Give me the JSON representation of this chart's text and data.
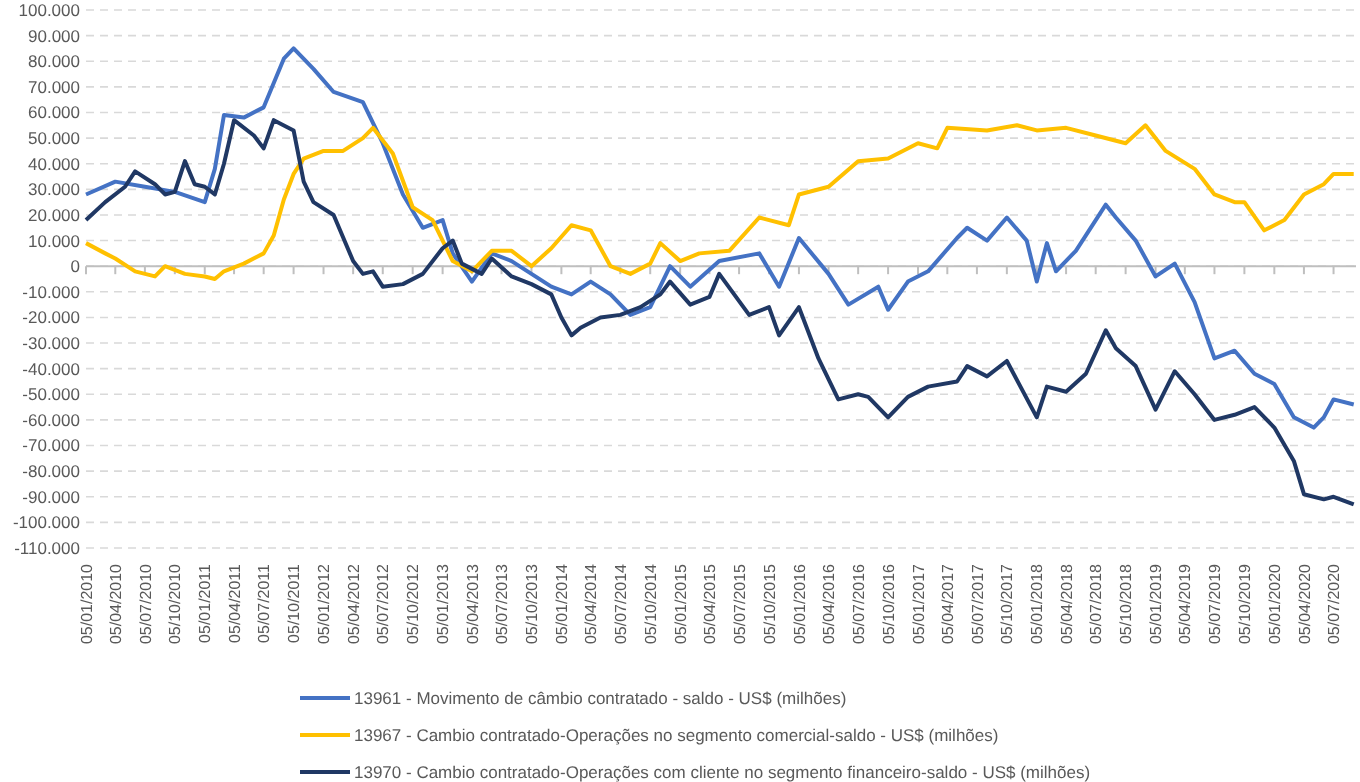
{
  "chart_data": {
    "type": "line",
    "grid": "y",
    "legend": "bottom",
    "xlim": [
      "2010-01-05",
      "2020-09-12"
    ],
    "ylim": [
      -110000,
      100000
    ],
    "yticks": [
      {
        "value": -110000,
        "label": "-110.000"
      },
      {
        "value": -100000,
        "label": "-100.000"
      },
      {
        "value": -90000,
        "label": "-90.000"
      },
      {
        "value": -80000,
        "label": "-80.000"
      },
      {
        "value": -70000,
        "label": "-70.000"
      },
      {
        "value": -60000,
        "label": "-60.000"
      },
      {
        "value": -50000,
        "label": "-50.000"
      },
      {
        "value": -40000,
        "label": "-40.000"
      },
      {
        "value": -30000,
        "label": "-30.000"
      },
      {
        "value": -20000,
        "label": "-20.000"
      },
      {
        "value": -10000,
        "label": "-10.000"
      },
      0,
      {
        "value": 10000,
        "label": "10.000"
      },
      {
        "value": 20000,
        "label": "20.000"
      },
      {
        "value": 30000,
        "label": "30.000"
      },
      {
        "value": 40000,
        "label": "40.000"
      },
      {
        "value": 50000,
        "label": "50.000"
      },
      {
        "value": 60000,
        "label": "60.000"
      },
      {
        "value": 70000,
        "label": "70.000"
      },
      {
        "value": 80000,
        "label": "80.000"
      },
      {
        "value": 90000,
        "label": "90.000"
      },
      {
        "value": 100000,
        "label": "100.000"
      }
    ],
    "xticks": [
      {
        "value": "2010-01-05",
        "label": "05/01/2010"
      },
      {
        "value": "2010-04-05",
        "label": "05/04/2010"
      },
      {
        "value": "2010-07-05",
        "label": "05/07/2010"
      },
      {
        "value": "2010-10-05",
        "label": "05/10/2010"
      },
      {
        "value": "2011-01-05",
        "label": "05/01/2011"
      },
      {
        "value": "2011-04-05",
        "label": "05/04/2011"
      },
      {
        "value": "2011-07-05",
        "label": "05/07/2011"
      },
      {
        "value": "2011-10-05",
        "label": "05/10/2011"
      },
      {
        "value": "2012-01-05",
        "label": "05/01/2012"
      },
      {
        "value": "2012-04-05",
        "label": "05/04/2012"
      },
      {
        "value": "2012-07-05",
        "label": "05/07/2012"
      },
      {
        "value": "2012-10-05",
        "label": "05/10/2012"
      },
      {
        "value": "2013-01-05",
        "label": "05/01/2013"
      },
      {
        "value": "2013-04-05",
        "label": "05/04/2013"
      },
      {
        "value": "2013-07-05",
        "label": "05/07/2013"
      },
      {
        "value": "2013-10-05",
        "label": "05/10/2013"
      },
      {
        "value": "2014-01-05",
        "label": "05/01/2014"
      },
      {
        "value": "2014-04-05",
        "label": "05/04/2014"
      },
      {
        "value": "2014-07-05",
        "label": "05/07/2014"
      },
      {
        "value": "2014-10-05",
        "label": "05/10/2014"
      },
      {
        "value": "2015-01-05",
        "label": "05/01/2015"
      },
      {
        "value": "2015-04-05",
        "label": "05/04/2015"
      },
      {
        "value": "2015-07-05",
        "label": "05/07/2015"
      },
      {
        "value": "2015-10-05",
        "label": "05/10/2015"
      },
      {
        "value": "2016-01-05",
        "label": "05/01/2016"
      },
      {
        "value": "2016-04-05",
        "label": "05/04/2016"
      },
      {
        "value": "2016-07-05",
        "label": "05/07/2016"
      },
      {
        "value": "2016-10-05",
        "label": "05/10/2016"
      },
      {
        "value": "2017-01-05",
        "label": "05/01/2017"
      },
      {
        "value": "2017-04-05",
        "label": "05/04/2017"
      },
      {
        "value": "2017-07-05",
        "label": "05/07/2017"
      },
      {
        "value": "2017-10-05",
        "label": "05/10/2017"
      },
      {
        "value": "2018-01-05",
        "label": "05/01/2018"
      },
      {
        "value": "2018-04-05",
        "label": "05/04/2018"
      },
      {
        "value": "2018-07-05",
        "label": "05/07/2018"
      },
      {
        "value": "2018-10-05",
        "label": "05/10/2018"
      },
      {
        "value": "2019-01-05",
        "label": "05/01/2019"
      },
      {
        "value": "2019-04-05",
        "label": "05/04/2019"
      },
      {
        "value": "2019-07-05",
        "label": "05/07/2019"
      },
      {
        "value": "2019-10-05",
        "label": "05/10/2019"
      },
      {
        "value": "2020-01-05",
        "label": "05/01/2020"
      },
      {
        "value": "2020-04-05",
        "label": "05/04/2020"
      },
      {
        "value": "2020-07-05",
        "label": "05/07/2020"
      }
    ],
    "series": [
      {
        "name": "13961 - Movimento de câmbio contratado - saldo - US$ (milhões)",
        "color": "#4472c4",
        "x": [
          "2010-01-05",
          "2010-04-05",
          "2010-07-05",
          "2010-10-05",
          "2011-01-05",
          "2011-02-05",
          "2011-03-05",
          "2011-05-05",
          "2011-07-05",
          "2011-09-05",
          "2011-10-05",
          "2011-12-05",
          "2012-02-05",
          "2012-05-05",
          "2012-07-05",
          "2012-09-05",
          "2012-11-05",
          "2013-01-05",
          "2013-02-05",
          "2013-04-05",
          "2013-06-05",
          "2013-08-05",
          "2013-10-05",
          "2013-12-05",
          "2014-02-05",
          "2014-04-05",
          "2014-06-05",
          "2014-08-05",
          "2014-10-05",
          "2014-12-05",
          "2015-02-05",
          "2015-05-05",
          "2015-09-05",
          "2015-11-05",
          "2016-01-05",
          "2016-04-05",
          "2016-06-05",
          "2016-09-05",
          "2016-10-05",
          "2016-12-05",
          "2017-02-05",
          "2017-05-05",
          "2017-06-05",
          "2017-08-05",
          "2017-10-05",
          "2017-12-05",
          "2018-01-05",
          "2018-02-05",
          "2018-03-05",
          "2018-05-05",
          "2018-08-05",
          "2018-09-05",
          "2018-11-05",
          "2019-01-05",
          "2019-03-05",
          "2019-05-05",
          "2019-07-05",
          "2019-09-05",
          "2019-11-05",
          "2020-01-05",
          "2020-03-05",
          "2020-05-05",
          "2020-06-05",
          "2020-07-05",
          "2020-09-05"
        ],
        "values": [
          28000,
          33000,
          31000,
          29000,
          25000,
          38000,
          59000,
          58000,
          62000,
          81000,
          85000,
          77000,
          68000,
          64000,
          48000,
          28000,
          15000,
          18000,
          5000,
          -6000,
          5000,
          2000,
          -3000,
          -8000,
          -11000,
          -6000,
          -11000,
          -19000,
          -16000,
          0,
          -8000,
          2000,
          5000,
          -8000,
          11000,
          -3000,
          -15000,
          -8000,
          -17000,
          -6000,
          -2000,
          11000,
          15000,
          10000,
          19000,
          10000,
          -6000,
          9000,
          -2000,
          6000,
          24000,
          19000,
          10000,
          -4000,
          1000,
          -14000,
          -36000,
          -33000,
          -42000,
          -46000,
          -59000,
          -63000,
          -59000,
          -52000,
          -54000
        ]
      },
      {
        "name": "13967 - Cambio contratado-Operações no segmento comercial-saldo - US$ (milhões)",
        "color": "#ffc000",
        "x": [
          "2010-01-05",
          "2010-03-05",
          "2010-04-05",
          "2010-06-05",
          "2010-08-05",
          "2010-09-05",
          "2010-11-05",
          "2011-01-05",
          "2011-02-05",
          "2011-03-05",
          "2011-05-05",
          "2011-07-05",
          "2011-08-05",
          "2011-09-05",
          "2011-10-05",
          "2011-11-05",
          "2012-01-05",
          "2012-03-05",
          "2012-05-05",
          "2012-06-05",
          "2012-08-05",
          "2012-10-05",
          "2012-12-05",
          "2013-02-05",
          "2013-04-05",
          "2013-06-05",
          "2013-08-05",
          "2013-10-05",
          "2013-12-05",
          "2014-02-05",
          "2014-04-05",
          "2014-06-05",
          "2014-08-05",
          "2014-10-05",
          "2014-11-05",
          "2015-01-05",
          "2015-03-05",
          "2015-06-05",
          "2015-09-05",
          "2015-12-05",
          "2016-01-05",
          "2016-04-05",
          "2016-07-05",
          "2016-10-05",
          "2017-01-05",
          "2017-03-05",
          "2017-04-05",
          "2017-08-05",
          "2017-11-05",
          "2018-01-05",
          "2018-04-05",
          "2018-07-05",
          "2018-10-05",
          "2018-12-05",
          "2019-02-05",
          "2019-05-05",
          "2019-07-05",
          "2019-09-05",
          "2019-10-05",
          "2019-12-05",
          "2020-02-05",
          "2020-04-05",
          "2020-06-05",
          "2020-07-05",
          "2020-09-05"
        ],
        "values": [
          9000,
          5000,
          3000,
          -2000,
          -4000,
          0,
          -3000,
          -4000,
          -5000,
          -2000,
          1000,
          5000,
          12000,
          26000,
          36000,
          42000,
          45000,
          45000,
          50000,
          54000,
          44000,
          23000,
          18000,
          2000,
          -2000,
          6000,
          6000,
          0,
          7000,
          16000,
          14000,
          0,
          -3000,
          1000,
          9000,
          2000,
          5000,
          6000,
          19000,
          16000,
          28000,
          31000,
          41000,
          42000,
          48000,
          46000,
          54000,
          53000,
          55000,
          53000,
          54000,
          51000,
          48000,
          55000,
          45000,
          38000,
          28000,
          25000,
          25000,
          14000,
          18000,
          28000,
          32000,
          36000,
          36000
        ]
      },
      {
        "name": "13970 - Cambio contratado-Operações com cliente no segmento financeiro-saldo - US$ (milhões)",
        "color": "#203864",
        "x": [
          "2010-01-05",
          "2010-03-05",
          "2010-05-05",
          "2010-06-05",
          "2010-08-05",
          "2010-09-05",
          "2010-10-05",
          "2010-11-05",
          "2010-12-05",
          "2011-01-05",
          "2011-02-05",
          "2011-03-05",
          "2011-04-05",
          "2011-06-05",
          "2011-07-05",
          "2011-08-05",
          "2011-10-05",
          "2011-11-05",
          "2011-12-05",
          "2012-02-05",
          "2012-04-05",
          "2012-05-05",
          "2012-06-05",
          "2012-07-05",
          "2012-09-05",
          "2012-11-05",
          "2013-01-05",
          "2013-02-05",
          "2013-03-05",
          "2013-05-05",
          "2013-06-05",
          "2013-08-05",
          "2013-10-05",
          "2013-12-05",
          "2014-01-05",
          "2014-02-05",
          "2014-03-05",
          "2014-05-05",
          "2014-07-05",
          "2014-09-05",
          "2014-11-05",
          "2014-12-05",
          "2015-02-05",
          "2015-04-05",
          "2015-05-05",
          "2015-08-05",
          "2015-10-05",
          "2015-11-05",
          "2016-01-05",
          "2016-03-05",
          "2016-05-05",
          "2016-07-05",
          "2016-08-05",
          "2016-10-05",
          "2016-12-05",
          "2017-02-05",
          "2017-05-05",
          "2017-06-05",
          "2017-08-05",
          "2017-10-05",
          "2018-01-05",
          "2018-02-05",
          "2018-04-05",
          "2018-06-05",
          "2018-08-05",
          "2018-09-05",
          "2018-11-05",
          "2019-01-05",
          "2019-03-05",
          "2019-05-05",
          "2019-07-05",
          "2019-09-05",
          "2019-11-05",
          "2020-01-05",
          "2020-03-05",
          "2020-04-05",
          "2020-06-05",
          "2020-07-05",
          "2020-09-05"
        ],
        "values": [
          18000,
          25000,
          31000,
          37000,
          32000,
          28000,
          29000,
          41000,
          32000,
          31000,
          28000,
          40000,
          57000,
          51000,
          46000,
          57000,
          53000,
          33000,
          25000,
          20000,
          2000,
          -3000,
          -2000,
          -8000,
          -7000,
          -3000,
          7000,
          10000,
          1000,
          -3000,
          3000,
          -4000,
          -7000,
          -11000,
          -20000,
          -27000,
          -24000,
          -20000,
          -19000,
          -16000,
          -11000,
          -6000,
          -15000,
          -12000,
          -3000,
          -19000,
          -16000,
          -27000,
          -16000,
          -36000,
          -52000,
          -50000,
          -51000,
          -59000,
          -51000,
          -47000,
          -45000,
          -39000,
          -43000,
          -37000,
          -59000,
          -47000,
          -49000,
          -42000,
          -25000,
          -32000,
          -39000,
          -56000,
          -41000,
          -50000,
          -60000,
          -58000,
          -55000,
          -63000,
          -76000,
          -89000,
          -91000,
          -90000,
          -93000
        ]
      }
    ]
  }
}
